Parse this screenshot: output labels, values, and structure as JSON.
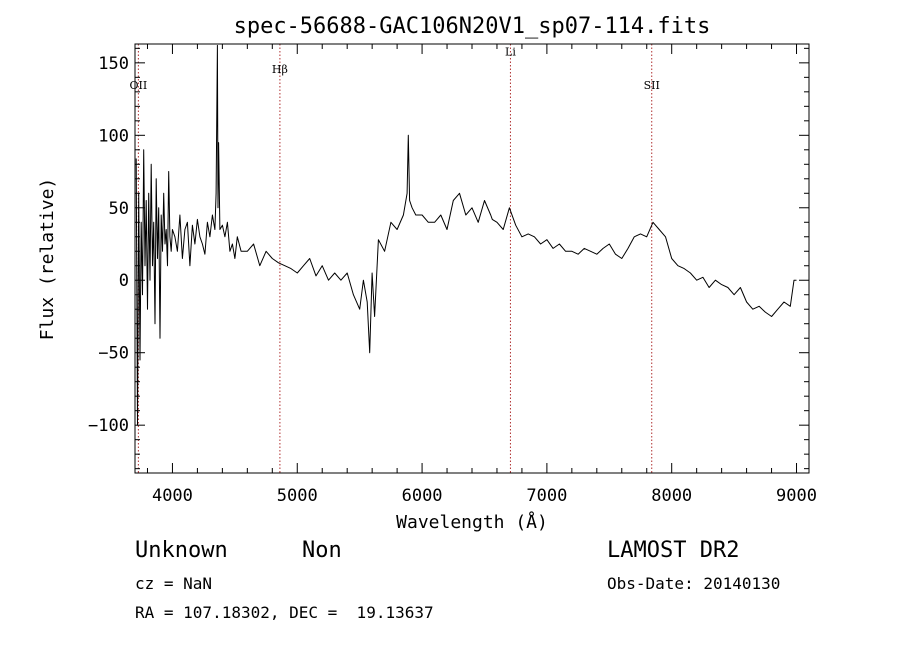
{
  "chart_data": {
    "type": "line",
    "title": "spec-56688-GAC106N20V1_sp07-114.fits",
    "xlabel": "Wavelength (Å)",
    "ylabel": "Flux (relative)",
    "xlim": [
      3700,
      9100
    ],
    "ylim": [
      -133,
      163
    ],
    "xticks": [
      4000,
      5000,
      6000,
      7000,
      8000,
      9000
    ],
    "yticks": [
      -100,
      -50,
      0,
      50,
      100,
      150
    ],
    "xtick_labels": [
      "4000",
      "5000",
      "6000",
      "7000",
      "8000",
      "9000"
    ],
    "ytick_labels": [
      "−100",
      "−50",
      "0",
      "50",
      "100",
      "150"
    ],
    "grid": false,
    "line_markers": [
      {
        "label": "OII",
        "x": 3727,
        "label_y": 132
      },
      {
        "label": "Hβ",
        "x": 4861,
        "label_y": 143
      },
      {
        "label": "Li",
        "x": 6708,
        "label_y": 155
      },
      {
        "label": "SII",
        "x": 7840,
        "label_y": 132
      }
    ],
    "series": [
      {
        "x": [
          3710,
          3720,
          3730,
          3740,
          3750,
          3760,
          3770,
          3780,
          3790,
          3800,
          3810,
          3820,
          3830,
          3840,
          3850,
          3860,
          3870,
          3880,
          3890,
          3900,
          3910,
          3920,
          3930,
          3940,
          3950,
          3960,
          3970,
          3980,
          3990,
          4000,
          4020,
          4040,
          4060,
          4080,
          4100,
          4120,
          4140,
          4160,
          4180,
          4200,
          4220,
          4240,
          4260,
          4280,
          4300,
          4320,
          4340,
          4350,
          4360,
          4365,
          4370,
          4380,
          4400,
          4420,
          4440,
          4460,
          4480,
          4500,
          4520,
          4550,
          4600,
          4650,
          4700,
          4750,
          4800,
          4850,
          4900,
          4950,
          5000,
          5050,
          5100,
          5150,
          5200,
          5250,
          5300,
          5350,
          5400,
          5450,
          5500,
          5530,
          5560,
          5580,
          5600,
          5620,
          5650,
          5700,
          5750,
          5800,
          5850,
          5880,
          5890,
          5900,
          5920,
          5950,
          6000,
          6050,
          6100,
          6150,
          6200,
          6250,
          6300,
          6350,
          6400,
          6450,
          6500,
          6550,
          6563,
          6600,
          6650,
          6700,
          6750,
          6800,
          6850,
          6900,
          6950,
          7000,
          7050,
          7100,
          7150,
          7200,
          7250,
          7300,
          7350,
          7400,
          7450,
          7500,
          7550,
          7600,
          7650,
          7700,
          7750,
          7800,
          7850,
          7900,
          7950,
          8000,
          8050,
          8100,
          8150,
          8200,
          8250,
          8300,
          8350,
          8400,
          8450,
          8500,
          8550,
          8600,
          8650,
          8700,
          8750,
          8800,
          8850,
          8900,
          8950,
          8980,
          9000
        ],
        "y": [
          84,
          -100,
          60,
          -55,
          40,
          -10,
          90,
          10,
          55,
          -20,
          60,
          0,
          80,
          10,
          40,
          -30,
          70,
          15,
          50,
          -40,
          45,
          20,
          60,
          25,
          35,
          10,
          75,
          30,
          20,
          35,
          30,
          20,
          45,
          15,
          35,
          40,
          10,
          38,
          25,
          42,
          30,
          25,
          18,
          40,
          30,
          45,
          35,
          60,
          162,
          50,
          95,
          35,
          38,
          30,
          40,
          20,
          25,
          15,
          30,
          20,
          20,
          25,
          10,
          20,
          15,
          12,
          10,
          8,
          5,
          10,
          15,
          3,
          10,
          0,
          5,
          0,
          5,
          -10,
          -20,
          0,
          -15,
          -50,
          5,
          -25,
          28,
          20,
          40,
          35,
          45,
          60,
          100,
          55,
          50,
          45,
          45,
          40,
          40,
          45,
          35,
          55,
          60,
          45,
          50,
          40,
          55,
          45,
          42,
          40,
          35,
          50,
          38,
          30,
          32,
          30,
          25,
          28,
          22,
          25,
          20,
          20,
          18,
          22,
          20,
          18,
          22,
          25,
          18,
          15,
          22,
          30,
          32,
          30,
          40,
          35,
          30,
          15,
          10,
          8,
          5,
          0,
          2,
          -5,
          0,
          -3,
          -5,
          -10,
          -5,
          -15,
          -20,
          -18,
          -22,
          -25,
          -20,
          -15,
          -18,
          0,
          0
        ]
      }
    ]
  },
  "footer": {
    "object_class": "Unknown",
    "object_subclass": "Non",
    "survey": "LAMOST DR2",
    "cz": "cz = NaN",
    "obs_date": "Obs-Date: 20140130",
    "coords": "RA = 107.18302, DEC =  19.13637"
  }
}
